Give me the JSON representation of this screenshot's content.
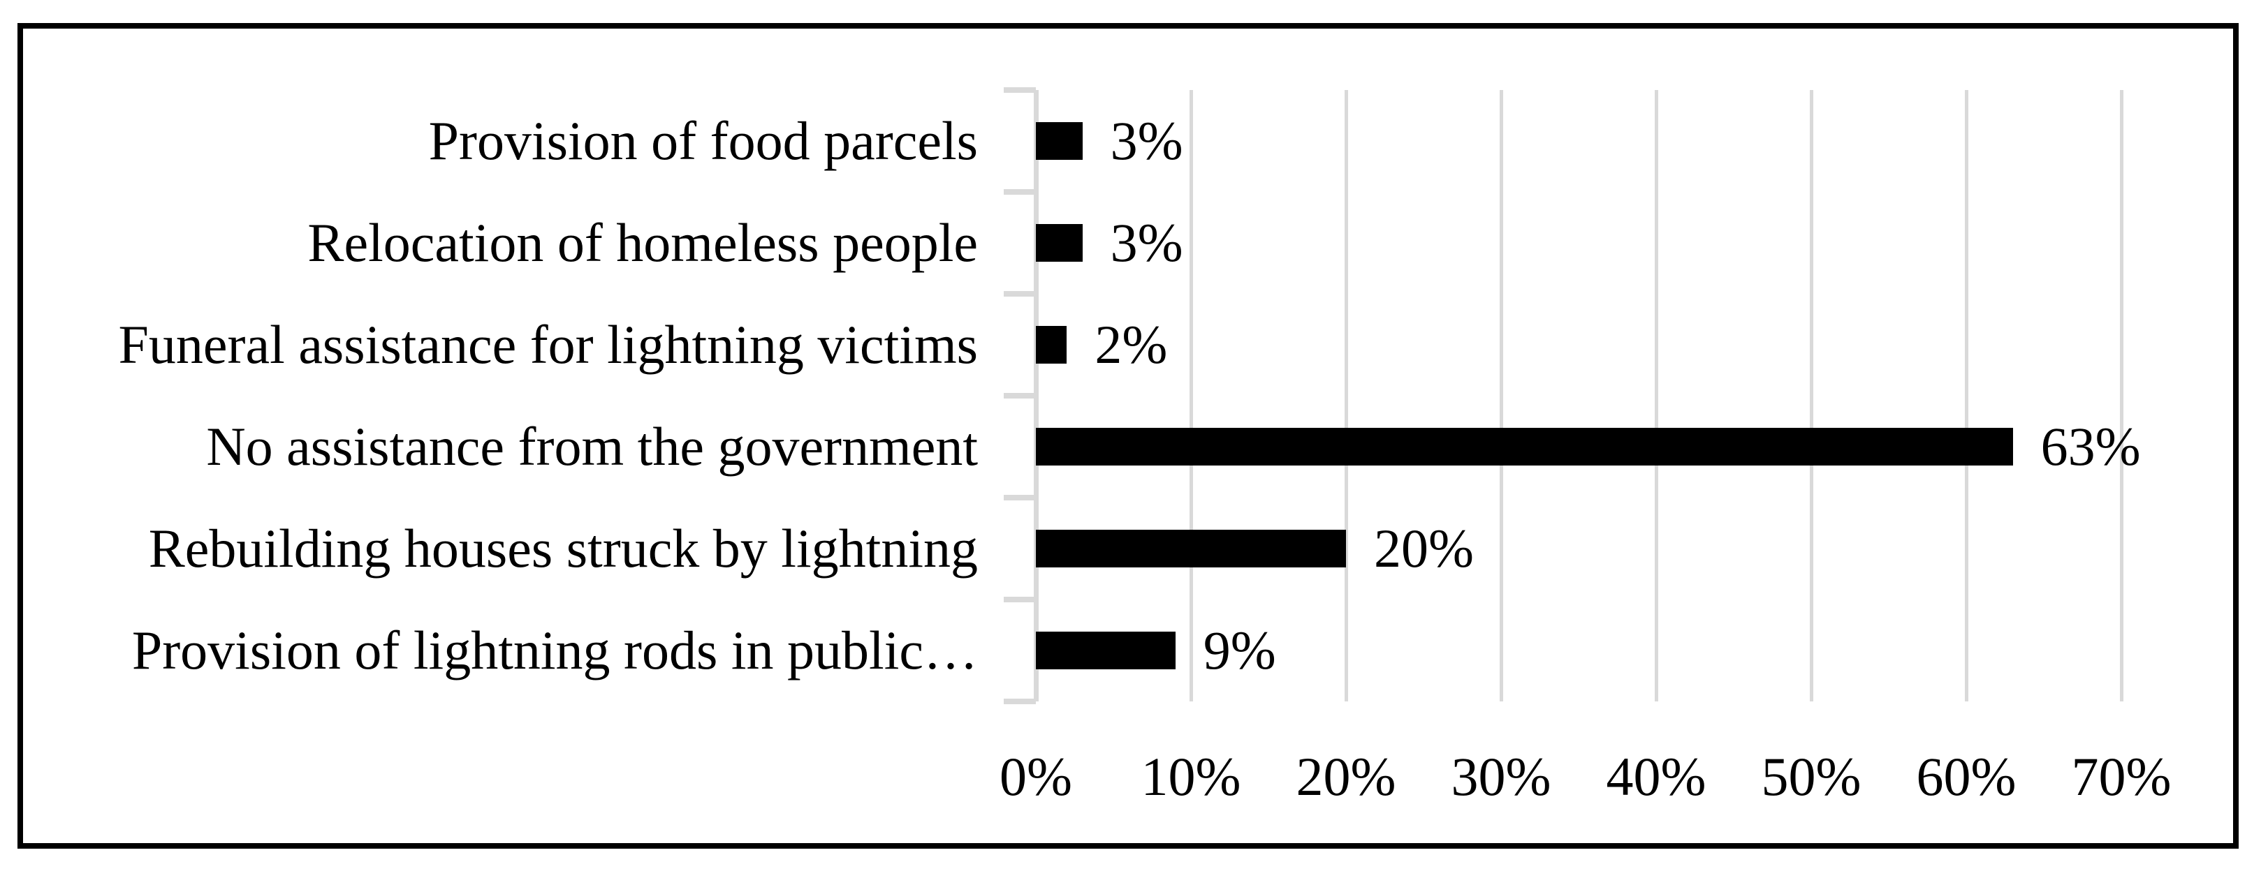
{
  "chart_data": {
    "type": "bar",
    "orientation": "horizontal",
    "title": "",
    "categories": [
      "Provision of food parcels",
      "Relocation of homeless people",
      "Funeral assistance for lightning victims",
      "No assistance from the government",
      "Rebuilding houses struck by lightning",
      "Provision of lightning rods in public…"
    ],
    "values": [
      3,
      3,
      2,
      63,
      20,
      9
    ],
    "value_labels": [
      "3%",
      "3%",
      "2%",
      "63%",
      "20%",
      "9%"
    ],
    "x_tick_labels": [
      "0%",
      "10%",
      "20%",
      "30%",
      "40%",
      "50%",
      "60%",
      "70%"
    ],
    "xlim": [
      0,
      70
    ],
    "x_tick_step": 10,
    "grid": true,
    "legend": false,
    "value_labels_position": "right-of-bar",
    "colors": {
      "bar": "#000000",
      "gridline": "#d9d9d9",
      "axis": "#d9d9d9",
      "text": "#000000",
      "frame_border": "#000000",
      "background": "#ffffff"
    }
  }
}
